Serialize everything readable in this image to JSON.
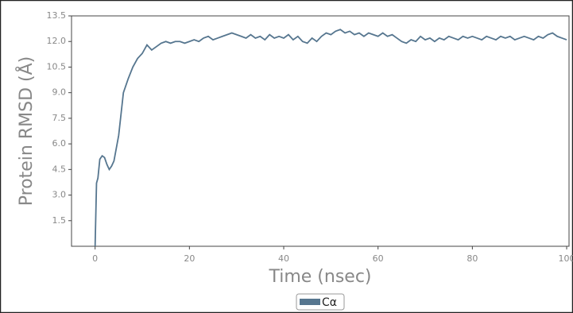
{
  "chart_data": {
    "type": "line",
    "xlabel": "Time (nsec)",
    "ylabel": "Protein RMSD (Å)",
    "x": [
      0,
      0.3,
      0.6,
      1,
      1.5,
      2,
      2.5,
      3,
      3.5,
      4,
      5,
      6,
      7,
      8,
      9,
      10,
      11,
      12,
      13,
      14,
      15,
      16,
      17,
      18,
      19,
      20,
      21,
      22,
      23,
      24,
      25,
      26,
      27,
      28,
      29,
      30,
      31,
      32,
      33,
      34,
      35,
      36,
      37,
      38,
      39,
      40,
      41,
      42,
      43,
      44,
      45,
      46,
      47,
      48,
      49,
      50,
      51,
      52,
      53,
      54,
      55,
      56,
      57,
      58,
      59,
      60,
      61,
      62,
      63,
      64,
      65,
      66,
      67,
      68,
      69,
      70,
      71,
      72,
      73,
      74,
      75,
      76,
      77,
      78,
      79,
      80,
      81,
      82,
      83,
      84,
      85,
      86,
      87,
      88,
      89,
      90,
      91,
      92,
      93,
      94,
      95,
      96,
      97,
      98,
      99,
      100
    ],
    "series": [
      {
        "name": "Cα",
        "color": "#56768f",
        "values": [
          0,
          3.7,
          4.0,
          5.1,
          5.3,
          5.2,
          4.8,
          4.5,
          4.7,
          5.0,
          6.5,
          9.0,
          9.8,
          10.5,
          11.0,
          11.3,
          11.8,
          11.5,
          11.7,
          11.9,
          12.0,
          11.9,
          12.0,
          12.0,
          11.9,
          12.0,
          12.1,
          12.0,
          12.2,
          12.3,
          12.1,
          12.2,
          12.3,
          12.4,
          12.5,
          12.4,
          12.3,
          12.2,
          12.4,
          12.2,
          12.3,
          12.1,
          12.4,
          12.2,
          12.3,
          12.2,
          12.4,
          12.1,
          12.3,
          12.0,
          11.9,
          12.2,
          12.0,
          12.3,
          12.5,
          12.4,
          12.6,
          12.7,
          12.5,
          12.6,
          12.4,
          12.5,
          12.3,
          12.5,
          12.4,
          12.3,
          12.5,
          12.3,
          12.4,
          12.2,
          12.0,
          11.9,
          12.1,
          12.0,
          12.3,
          12.1,
          12.2,
          12.0,
          12.2,
          12.1,
          12.3,
          12.2,
          12.1,
          12.3,
          12.2,
          12.3,
          12.2,
          12.1,
          12.3,
          12.2,
          12.1,
          12.3,
          12.2,
          12.3,
          12.1,
          12.2,
          12.3,
          12.2,
          12.1,
          12.3,
          12.2,
          12.4,
          12.5,
          12.3,
          12.2,
          12.1
        ]
      }
    ],
    "xlim": [
      -5,
      100.5
    ],
    "ylim": [
      0,
      13.5
    ],
    "xticks": [
      0,
      20,
      40,
      60,
      80,
      100
    ],
    "yticks": [
      1.5,
      {
        "value": 3,
        "label": "3.0"
      },
      4.5,
      {
        "value": 6,
        "label": "6.0"
      },
      7.5,
      {
        "value": 9,
        "label": "9.0"
      },
      10.5,
      {
        "value": 12,
        "label": "12.0"
      },
      13.5
    ],
    "legend": "lower center"
  }
}
